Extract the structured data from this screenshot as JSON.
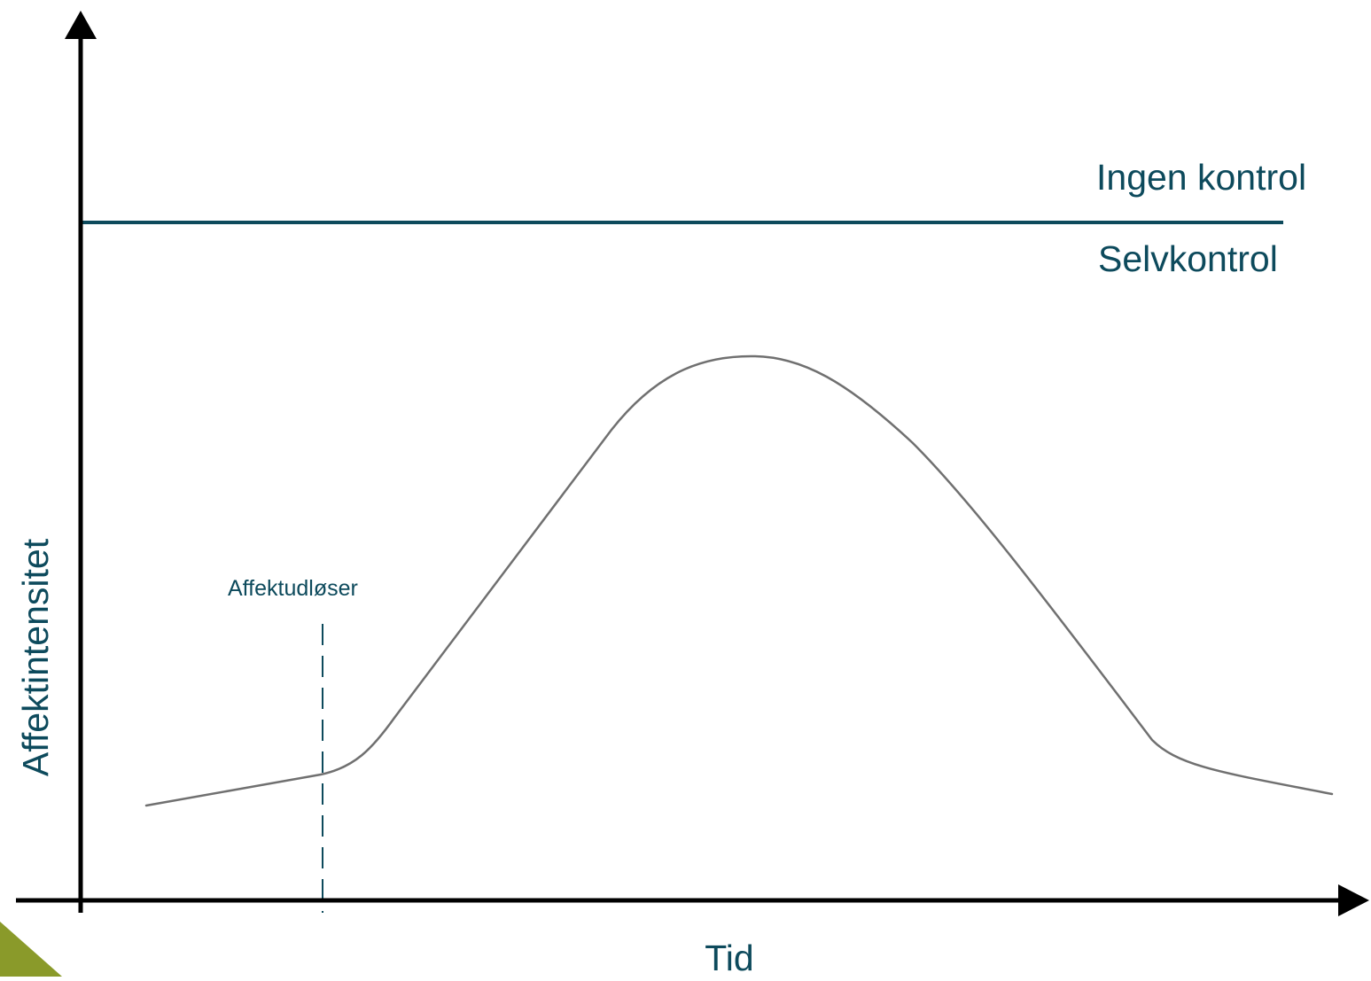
{
  "labels": {
    "y_axis": "Affektintensitet",
    "x_axis": "Tid",
    "threshold_above": "Ingen kontrol",
    "threshold_below": "Selvkontrol",
    "trigger": "Affektudløser"
  },
  "colors": {
    "axis": "#000000",
    "threshold": "#0d4a5c",
    "curve": "#707070",
    "trigger_line": "#0d4a5c",
    "text": "#0d4a5c",
    "corner_accent": "#8a9a2a"
  }
}
